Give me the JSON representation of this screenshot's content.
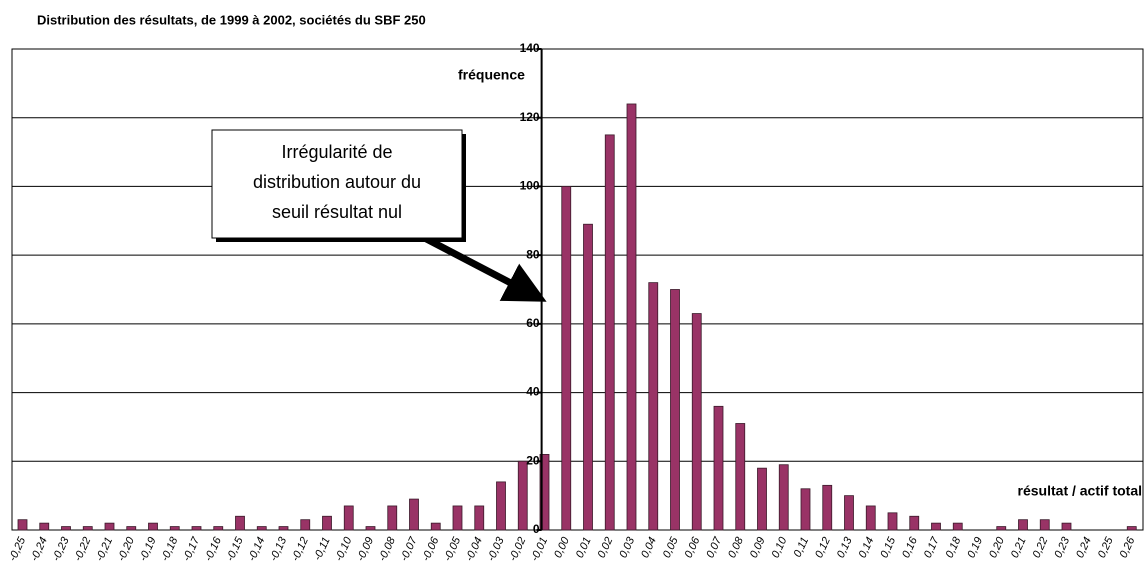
{
  "chart_data": {
    "type": "bar",
    "title": "Distribution des résultats, de 1999 à 2002, sociétés du SBF 250",
    "y_label": "fréquence",
    "x_label": "résultat / actif total",
    "annotation": [
      "Irrégularité de",
      "distribution autour du",
      "seuil résultat nul"
    ],
    "categories": [
      "-0,25",
      "-0,24",
      "-0,23",
      "-0,22",
      "-0,21",
      "-0,20",
      "-0,19",
      "-0,18",
      "-0,17",
      "-0,16",
      "-0,15",
      "-0,14",
      "-0,13",
      "-0,12",
      "-0,11",
      "-0,10",
      "-0,09",
      "-0,08",
      "-0,07",
      "-0,06",
      "-0,05",
      "-0,04",
      "-0,03",
      "-0,02",
      "-0,01",
      "0,00",
      "0,01",
      "0,02",
      "0,03",
      "0,04",
      "0,05",
      "0,06",
      "0,07",
      "0,08",
      "0,09",
      "0,10",
      "0,11",
      "0,12",
      "0,13",
      "0,14",
      "0,15",
      "0,16",
      "0,17",
      "0,18",
      "0,19",
      "0,20",
      "0,21",
      "0,22",
      "0,23",
      "0,24",
      "0,25",
      "0,26"
    ],
    "values": [
      3,
      2,
      1,
      1,
      2,
      1,
      2,
      1,
      1,
      1,
      4,
      1,
      1,
      3,
      4,
      7,
      1,
      7,
      9,
      2,
      7,
      7,
      14,
      20,
      22,
      100,
      89,
      115,
      124,
      72,
      70,
      63,
      36,
      31,
      18,
      19,
      12,
      13,
      10,
      7,
      5,
      4,
      2,
      2,
      0,
      1,
      3,
      3,
      2,
      0,
      0,
      1
    ],
    "color": "#993366",
    "ylim": [
      0,
      140
    ],
    "yticks": [
      0,
      20,
      40,
      60,
      80,
      100,
      120,
      140
    ],
    "grid": true
  }
}
